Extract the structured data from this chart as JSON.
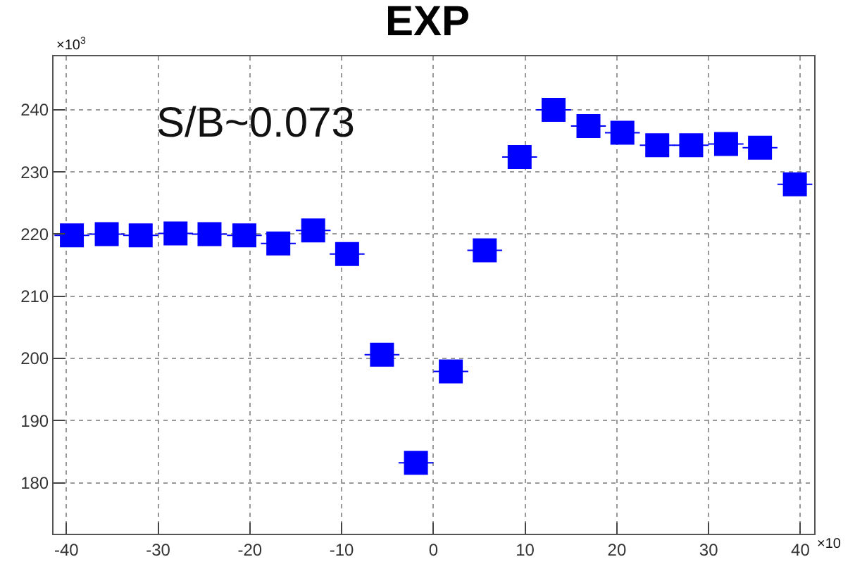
{
  "chart_data": {
    "type": "scatter",
    "title": "EXP",
    "x": [
      -39.4,
      -35.6,
      -31.9,
      -28.1,
      -24.4,
      -20.6,
      -16.9,
      -13.1,
      -9.4,
      -5.6,
      -1.9,
      1.9,
      5.6,
      9.4,
      13.1,
      16.9,
      20.6,
      24.4,
      28.1,
      31.9,
      35.6,
      39.4
    ],
    "series": [
      {
        "color": "#0000ff",
        "values": [
          219.8,
          220.0,
          219.8,
          220.1,
          220.0,
          219.8,
          218.5,
          220.6,
          216.8,
          200.6,
          183.2,
          197.9,
          217.4,
          232.4,
          240.0,
          237.4,
          236.3,
          234.3,
          234.3,
          234.5,
          233.9,
          228.0
        ],
        "xerrors": [
          1.9,
          1.9,
          1.9,
          1.9,
          1.9,
          1.9,
          1.9,
          1.9,
          1.9,
          1.9,
          1.9,
          1.9,
          1.9,
          1.9,
          1.9,
          1.9,
          1.9,
          1.9,
          1.9,
          1.9,
          1.9,
          1.9
        ]
      }
    ],
    "xlim": [
      -41.4,
      41.5
    ],
    "ylim": [
      171.8,
      248.6
    ],
    "xticks": [
      -40,
      -30,
      -20,
      -10,
      0,
      10,
      20,
      30,
      40
    ],
    "yticks": [
      180,
      190,
      200,
      210,
      220,
      230,
      240
    ],
    "annotations": [
      "S/B~0.073",
      "×10$^{3}$",
      "×10"
    ],
    "grid": true,
    "marker": "square"
  }
}
